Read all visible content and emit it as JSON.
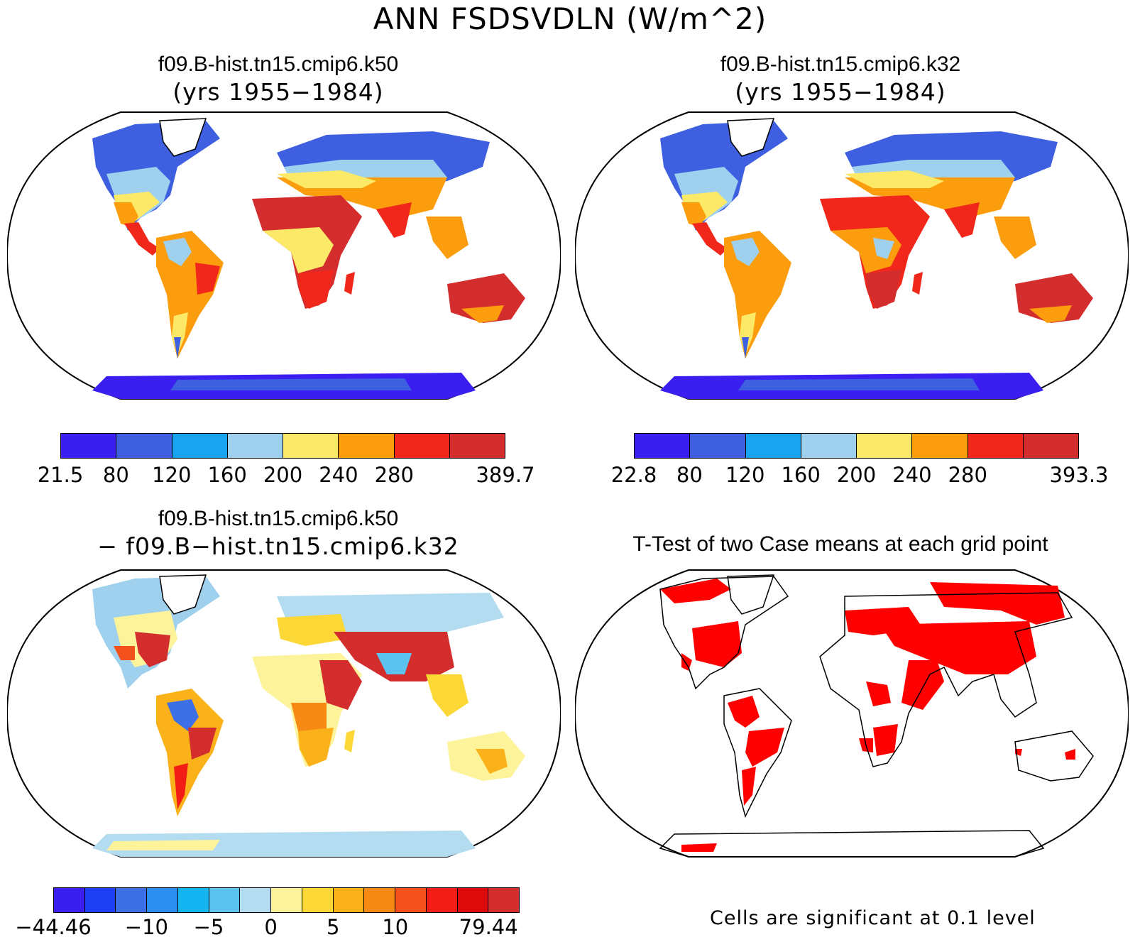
{
  "title": "ANN FSDSVDLN (W/m^2)",
  "panels": {
    "top_left": {
      "case": "f09.B-hist.tn15.cmip6.k50",
      "years": "(yrs 1955−1984)",
      "colorbar": {
        "colors": [
          "#3b1ff0",
          "#3d5fe0",
          "#1aa3f0",
          "#9fd0ee",
          "#fde968",
          "#fb9d0d",
          "#f2271b",
          "#d42d2d"
        ],
        "labels": [
          "21.5",
          "80",
          "120",
          "160",
          "200",
          "240",
          "280",
          "389.7"
        ],
        "label_at": [
          0,
          1,
          2,
          3,
          4,
          5,
          6,
          8
        ]
      }
    },
    "top_right": {
      "case": "f09.B-hist.tn15.cmip6.k32",
      "years": "(yrs 1955−1984)",
      "colorbar": {
        "colors": [
          "#3b1ff0",
          "#3d5fe0",
          "#1aa3f0",
          "#9fd0ee",
          "#fde968",
          "#fb9d0d",
          "#f2271b",
          "#d42d2d"
        ],
        "labels": [
          "22.8",
          "80",
          "120",
          "160",
          "200",
          "240",
          "280",
          "393.3"
        ],
        "label_at": [
          0,
          1,
          2,
          3,
          4,
          5,
          6,
          8
        ]
      }
    },
    "bottom_left": {
      "case": "f09.B-hist.tn15.cmip6.k50",
      "minus": "− f09.B−hist.tn15.cmip6.k32",
      "colorbar": {
        "colors": [
          "#3b1ff0",
          "#1f3ff5",
          "#3d6fe6",
          "#2b8ef0",
          "#14b4f0",
          "#5cc2ee",
          "#b4dcf0",
          "#fdf39a",
          "#fbd836",
          "#fbb21a",
          "#f78a14",
          "#f4521d",
          "#f21d16",
          "#dd0b0b",
          "#d42d2d"
        ],
        "labels": [
          "−44.46",
          "−10",
          "−5",
          "0",
          "5",
          "10",
          "79.44"
        ],
        "label_at": [
          0,
          3,
          5,
          7,
          9,
          11,
          14
        ]
      }
    },
    "bottom_right": {
      "title": "T-Test of two Case means at each grid point",
      "note": "Cells are significant at 0.1 level",
      "color": "#ff0000"
    }
  }
}
